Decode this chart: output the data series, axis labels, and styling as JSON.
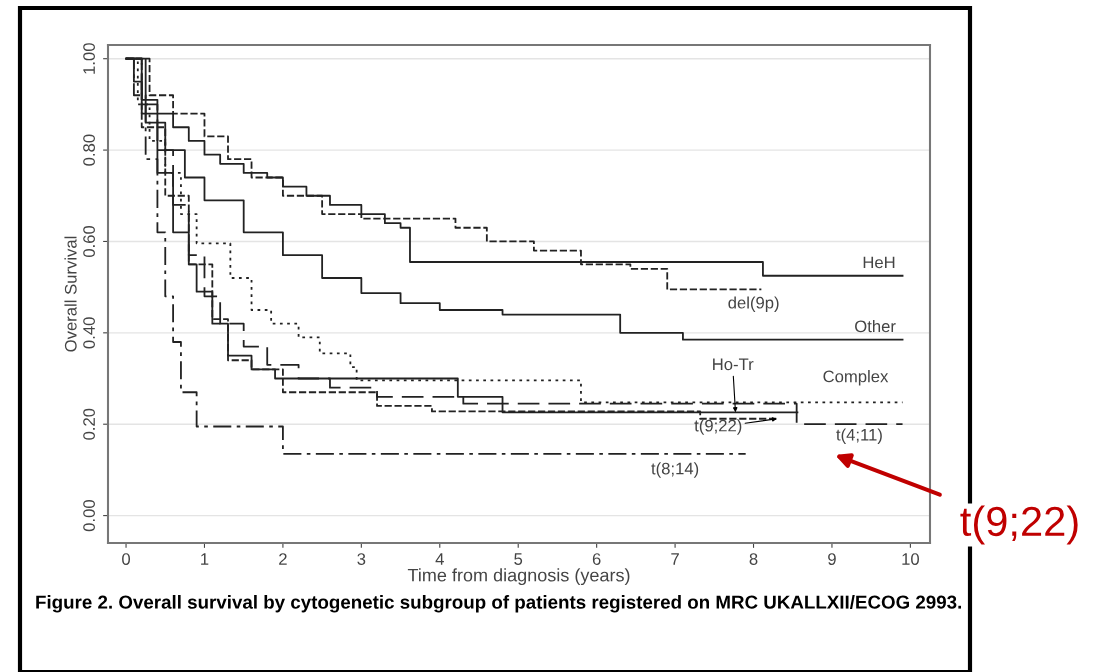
{
  "chart_data": {
    "type": "step",
    "xlabel": "Time from diagnosis (years)",
    "ylabel": "Overall Survival",
    "xlim": [
      -0.23,
      10.25
    ],
    "ylim": [
      -0.06,
      1.03
    ],
    "xticks": [
      0,
      1,
      2,
      3,
      4,
      5,
      6,
      7,
      8,
      9,
      10
    ],
    "yticks": [
      {
        "value": 0,
        "label": "0.00"
      },
      {
        "value": 0.2,
        "label": "0.20"
      },
      {
        "value": 0.4,
        "label": "0.40"
      },
      {
        "value": 0.6,
        "label": "0.60"
      },
      {
        "value": 0.8,
        "label": "0.80"
      },
      {
        "value": 1,
        "label": "1.00"
      }
    ],
    "grid": "y",
    "legend": false,
    "marker": "none",
    "series": [
      {
        "color": "#222222",
        "line_style": "solid",
        "x": [
          0,
          0.1,
          0.2,
          0.4,
          0.6,
          0.8,
          1.0,
          1.2,
          1.5,
          1.8,
          2.0,
          2.3,
          2.6,
          3.0,
          3.3,
          3.5,
          3.62,
          8.12,
          9.9
        ],
        "values": [
          1,
          0.95,
          0.91,
          0.88,
          0.85,
          0.82,
          0.79,
          0.77,
          0.75,
          0.74,
          0.72,
          0.7,
          0.68,
          0.66,
          0.64,
          0.63,
          0.555,
          0.525,
          0.525
        ]
      },
      {
        "color": "#222222",
        "line_style": "dashed",
        "x": [
          0,
          0.3,
          0.6,
          1.0,
          1.3,
          1.6,
          2.0,
          2.5,
          3.0,
          3.5,
          4.2,
          4.6,
          5.2,
          5.8,
          6.43,
          6.9,
          8.1
        ],
        "values": [
          1,
          0.92,
          0.88,
          0.83,
          0.78,
          0.74,
          0.7,
          0.66,
          0.65,
          0.65,
          0.63,
          0.6,
          0.58,
          0.55,
          0.54,
          0.495,
          0.495
        ]
      },
      {
        "color": "#222222",
        "line_style": "solid",
        "x": [
          0,
          0.25,
          0.5,
          0.75,
          1.0,
          1.5,
          2.0,
          2.5,
          3.0,
          3.5,
          4.0,
          4.8,
          6.3,
          7.1,
          9.9
        ],
        "values": [
          1,
          0.86,
          0.8,
          0.74,
          0.69,
          0.62,
          0.57,
          0.52,
          0.487,
          0.465,
          0.45,
          0.44,
          0.4,
          0.385,
          0.385
        ]
      },
      {
        "color": "#222222",
        "line_style": "dotted",
        "x": [
          0,
          0.15,
          0.3,
          0.5,
          0.7,
          0.9,
          1.33,
          1.6,
          1.85,
          2.2,
          2.47,
          2.86,
          2.94,
          5.8,
          9.9
        ],
        "values": [
          1,
          0.9,
          0.82,
          0.75,
          0.66,
          0.596,
          0.52,
          0.45,
          0.42,
          0.39,
          0.355,
          0.325,
          0.296,
          0.248,
          0.248
        ]
      },
      {
        "color": "#222222",
        "line_style": "solid",
        "x": [
          0,
          0.2,
          0.4,
          0.6,
          0.8,
          0.9,
          1.1,
          1.3,
          1.6,
          1.9,
          4.23,
          4.8,
          8.56
        ],
        "values": [
          1,
          0.88,
          0.75,
          0.62,
          0.55,
          0.49,
          0.42,
          0.35,
          0.32,
          0.3,
          0.26,
          0.226,
          0.226
        ]
      },
      {
        "color": "#222222",
        "line_style": "dashed",
        "x": [
          0,
          0.2,
          0.5,
          0.8,
          1.1,
          1.3,
          1.6,
          2.0,
          3.2,
          3.9,
          7.32,
          8.3
        ],
        "values": [
          1,
          0.85,
          0.7,
          0.55,
          0.43,
          0.34,
          0.32,
          0.27,
          0.24,
          0.228,
          0.212,
          0.212
        ]
      },
      {
        "color": "#222222",
        "line_style": "longdash",
        "x": [
          0,
          0.2,
          0.4,
          0.6,
          0.8,
          1.0,
          1.2,
          1.5,
          1.8,
          2.2,
          2.6,
          3.2,
          4.3,
          8.55,
          9.9
        ],
        "values": [
          1,
          0.9,
          0.8,
          0.68,
          0.57,
          0.48,
          0.42,
          0.37,
          0.33,
          0.3,
          0.28,
          0.26,
          0.245,
          0.2,
          0.2
        ]
      },
      {
        "color": "#222222",
        "line_style": "dashdot",
        "x": [
          0,
          0.1,
          0.25,
          0.4,
          0.5,
          0.6,
          0.7,
          0.9,
          2.0,
          7.9
        ],
        "values": [
          1,
          0.92,
          0.78,
          0.62,
          0.48,
          0.38,
          0.27,
          0.195,
          0.135,
          0.135
        ]
      }
    ],
    "annotations": [
      {
        "text": "HeH",
        "x": 9.6,
        "y": 0.525
      },
      {
        "text": "del(9p)",
        "x": 7.6,
        "y": 0.495
      },
      {
        "text": "Other",
        "x": 9.55,
        "y": 0.385
      },
      {
        "text": "Complex",
        "x": 9.3,
        "y": 0.248
      },
      {
        "text": "Ho-Tr",
        "x": 7.77,
        "y": 0.226
      },
      {
        "text": "t(9;22)",
        "x": 8.3,
        "y": 0.212
      },
      {
        "text": "t(4;11)",
        "x": 9.35,
        "y": 0.2
      },
      {
        "text": "t(8;14)",
        "x": 7.0,
        "y": 0.135
      },
      "t(9;22)",
      "Figure 2. Overall survival by cytogenetic subgroup of patients registered on MRC UKALLXII/ECOG 2993."
    ]
  }
}
